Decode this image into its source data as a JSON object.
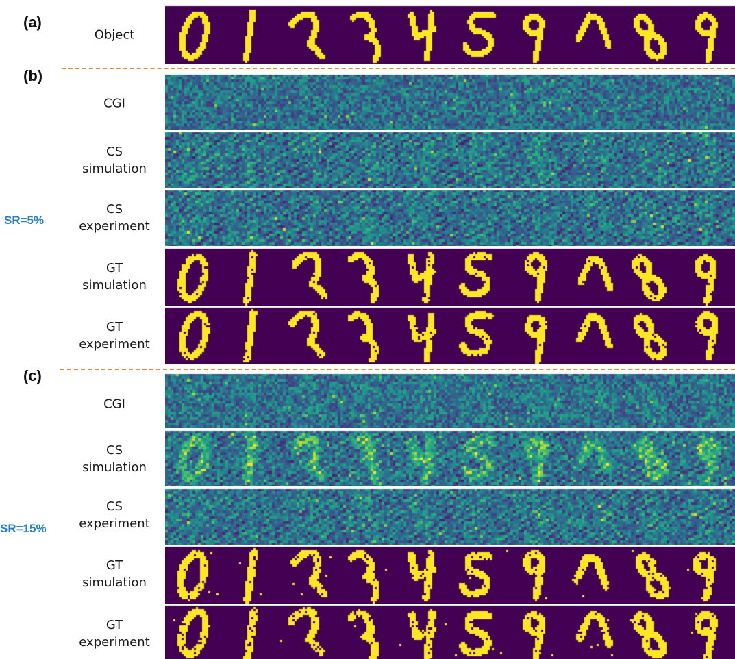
{
  "panels": {
    "a": "(a)",
    "b": "(b)",
    "c": "(c)"
  },
  "sampling_ratio_labels": {
    "b": "SR=5%",
    "c": "SR=15%"
  },
  "rows": {
    "object": {
      "line1": "Object",
      "line2": ""
    },
    "b_cgi": {
      "line1": "CGI",
      "line2": ""
    },
    "b_cs_sim": {
      "line1": "CS",
      "line2": "simulation"
    },
    "b_cs_exp": {
      "line1": "CS",
      "line2": "experiment"
    },
    "b_gt_sim": {
      "line1": "GT",
      "line2": "simulation"
    },
    "b_gt_exp": {
      "line1": "GT",
      "line2": "experiment"
    },
    "c_cgi": {
      "line1": "CGI",
      "line2": ""
    },
    "c_cs_sim": {
      "line1": "CS",
      "line2": "simulation"
    },
    "c_cs_exp": {
      "line1": "CS",
      "line2": "experiment"
    },
    "c_gt_sim": {
      "line1": "GT",
      "line2": "simulation"
    },
    "c_gt_exp": {
      "line1": "GT",
      "line2": "experiment"
    }
  },
  "digits": [
    "0",
    "1",
    "2",
    "3",
    "4",
    "5",
    "9",
    "7",
    "8",
    "9"
  ],
  "colors": {
    "background_dark": "#440154",
    "digit_fill": "#fde725",
    "noise_base": "#2a788e",
    "noise_high": "#b5de2b",
    "divider": "#e8863a",
    "sr_text": "#2b7fc4"
  }
}
